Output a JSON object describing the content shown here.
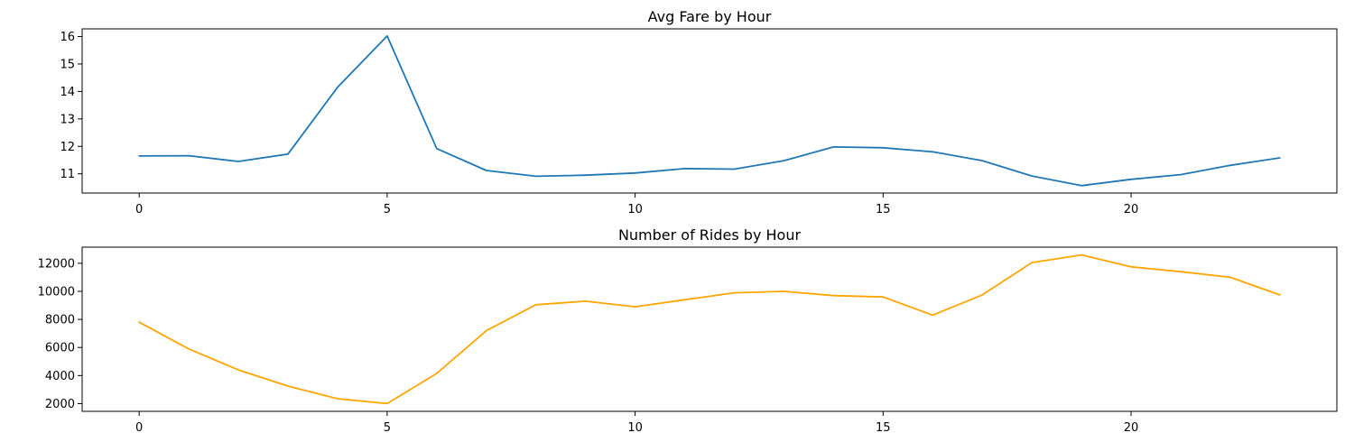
{
  "chart_data": [
    {
      "type": "line",
      "title": "Avg Fare by Hour",
      "xlabel": "",
      "ylabel": "",
      "xlim": [
        -1.15,
        24.15
      ],
      "ylim": [
        10.3,
        16.28
      ],
      "xticks": [
        0,
        5,
        10,
        15,
        20
      ],
      "yticks": [
        11,
        12,
        13,
        14,
        15,
        16
      ],
      "grid": false,
      "legend": "none",
      "series": [
        {
          "color": "#1f77b4",
          "x": [
            0,
            1,
            2,
            3,
            4,
            5,
            6,
            7,
            8,
            9,
            10,
            11,
            12,
            13,
            14,
            15,
            16,
            17,
            18,
            19,
            20,
            21,
            22,
            23
          ],
          "y": [
            11.65,
            11.66,
            11.45,
            11.72,
            14.15,
            16.02,
            11.92,
            11.12,
            10.91,
            10.95,
            11.03,
            11.19,
            11.17,
            11.48,
            11.98,
            11.95,
            11.8,
            11.48,
            10.92,
            10.57,
            10.8,
            10.97,
            11.31,
            11.58
          ]
        }
      ]
    },
    {
      "type": "line",
      "title": "Number of Rides by Hour",
      "xlabel": "",
      "ylabel": "",
      "xlim": [
        -1.15,
        24.15
      ],
      "ylim": [
        1450,
        13150
      ],
      "xticks": [
        0,
        5,
        10,
        15,
        20
      ],
      "yticks": [
        2000,
        4000,
        6000,
        8000,
        10000,
        12000
      ],
      "grid": false,
      "legend": "none",
      "series": [
        {
          "color": "#ffa500",
          "x": [
            0,
            1,
            2,
            3,
            4,
            5,
            6,
            7,
            8,
            9,
            10,
            11,
            12,
            13,
            14,
            15,
            16,
            17,
            18,
            19,
            20,
            21,
            22,
            23
          ],
          "y": [
            7800,
            5900,
            4400,
            3250,
            2350,
            2000,
            4150,
            7200,
            9050,
            9300,
            8900,
            9400,
            9900,
            10000,
            9700,
            9600,
            8300,
            9750,
            12050,
            12600,
            11750,
            11400,
            11000,
            9750
          ]
        }
      ]
    }
  ]
}
